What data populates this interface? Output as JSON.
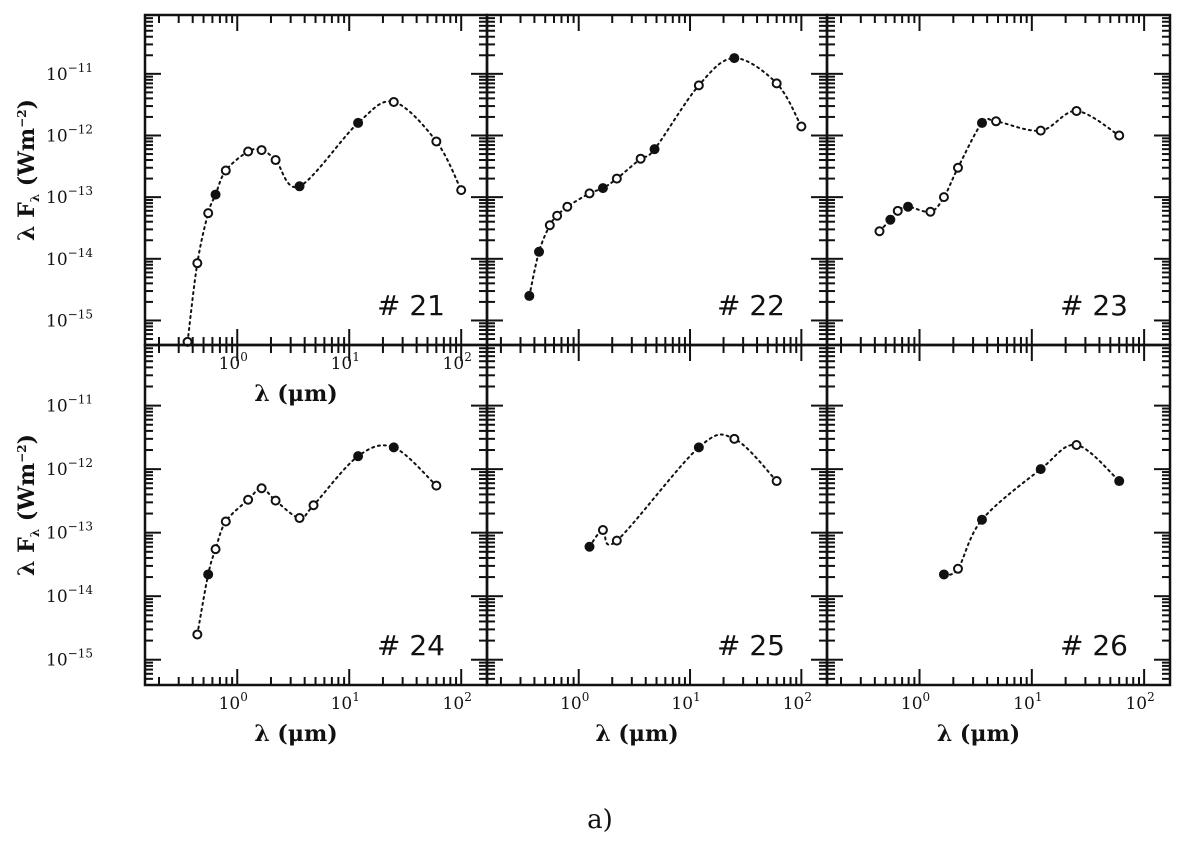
{
  "figure": {
    "caption": "a)",
    "x_axis_label": "λ (μm)",
    "y_axis_label": "λ F",
    "y_axis_label_sub": "λ",
    "y_axis_label_unit": "(Wm",
    "y_axis_label_unit_exp": "−2",
    "y_axis_label_close": ")"
  },
  "chart_data": [
    {
      "type": "scatter",
      "panel_label": "# 21",
      "x_scale": "log",
      "y_scale": "log",
      "xlim": [
        0.15,
        170
      ],
      "ylim": [
        4e-16,
        9e-11
      ],
      "x_ticks": [
        "10^0",
        "10^1",
        "10^2"
      ],
      "y_ticks": [
        "10^-15",
        "10^-14",
        "10^-13",
        "10^-12",
        "10^-11"
      ],
      "xlabel": "λ (μm)",
      "ylabel": "λ F_λ (Wm^-2)",
      "series": [
        {
          "points": [
            {
              "x": 0.36,
              "y": 4.5e-16,
              "filled": false
            },
            {
              "x": 0.44,
              "y": 8.5e-15,
              "filled": false
            },
            {
              "x": 0.55,
              "y": 5.5e-14,
              "filled": false
            },
            {
              "x": 0.64,
              "y": 1.1e-13,
              "filled": true
            },
            {
              "x": 0.79,
              "y": 2.7e-13,
              "filled": false
            },
            {
              "x": 1.25,
              "y": 5.5e-13,
              "filled": false
            },
            {
              "x": 1.65,
              "y": 5.8e-13,
              "filled": false
            },
            {
              "x": 2.2,
              "y": 4e-13,
              "filled": false
            },
            {
              "x": 3.6,
              "y": 1.5e-13,
              "filled": true
            },
            {
              "x": 12,
              "y": 1.6e-12,
              "filled": true
            },
            {
              "x": 25,
              "y": 3.5e-12,
              "filled": false
            },
            {
              "x": 60,
              "y": 8e-13,
              "filled": false
            },
            {
              "x": 100,
              "y": 1.3e-13,
              "filled": false
            }
          ]
        }
      ]
    },
    {
      "type": "scatter",
      "panel_label": "# 22",
      "x_scale": "log",
      "y_scale": "log",
      "xlim": [
        0.15,
        170
      ],
      "ylim": [
        4e-16,
        9e-11
      ],
      "x_ticks": [],
      "y_ticks": [],
      "series": [
        {
          "points": [
            {
              "x": 0.36,
              "y": 2.5e-15,
              "filled": true
            },
            {
              "x": 0.44,
              "y": 1.3e-14,
              "filled": true
            },
            {
              "x": 0.55,
              "y": 3.5e-14,
              "filled": false
            },
            {
              "x": 0.64,
              "y": 5e-14,
              "filled": false
            },
            {
              "x": 0.79,
              "y": 7e-14,
              "filled": false
            },
            {
              "x": 1.25,
              "y": 1.15e-13,
              "filled": false
            },
            {
              "x": 1.65,
              "y": 1.4e-13,
              "filled": true
            },
            {
              "x": 2.2,
              "y": 2e-13,
              "filled": false
            },
            {
              "x": 3.6,
              "y": 4.2e-13,
              "filled": false
            },
            {
              "x": 4.8,
              "y": 6e-13,
              "filled": true
            },
            {
              "x": 12,
              "y": 6.5e-12,
              "filled": false
            },
            {
              "x": 25,
              "y": 1.8e-11,
              "filled": true
            },
            {
              "x": 60,
              "y": 7e-12,
              "filled": false
            },
            {
              "x": 100,
              "y": 1.4e-12,
              "filled": false
            }
          ]
        }
      ]
    },
    {
      "type": "scatter",
      "panel_label": "# 23",
      "x_scale": "log",
      "y_scale": "log",
      "xlim": [
        0.15,
        170
      ],
      "ylim": [
        4e-16,
        9e-11
      ],
      "x_ticks": [],
      "y_ticks": [],
      "series": [
        {
          "points": [
            {
              "x": 0.44,
              "y": 2.8e-14,
              "filled": false
            },
            {
              "x": 0.55,
              "y": 4.3e-14,
              "filled": true
            },
            {
              "x": 0.64,
              "y": 6e-14,
              "filled": false
            },
            {
              "x": 0.79,
              "y": 7e-14,
              "filled": true
            },
            {
              "x": 1.25,
              "y": 5.8e-14,
              "filled": false
            },
            {
              "x": 1.65,
              "y": 1e-13,
              "filled": false
            },
            {
              "x": 2.2,
              "y": 3e-13,
              "filled": false
            },
            {
              "x": 3.6,
              "y": 1.6e-12,
              "filled": true
            },
            {
              "x": 4.8,
              "y": 1.7e-12,
              "filled": false
            },
            {
              "x": 12,
              "y": 1.2e-12,
              "filled": false
            },
            {
              "x": 25,
              "y": 2.5e-12,
              "filled": false
            },
            {
              "x": 60,
              "y": 1e-12,
              "filled": false
            }
          ]
        }
      ]
    },
    {
      "type": "scatter",
      "panel_label": "# 24",
      "x_scale": "log",
      "y_scale": "log",
      "xlim": [
        0.15,
        170
      ],
      "ylim": [
        4e-16,
        9e-11
      ],
      "x_ticks": [
        "10^0",
        "10^1",
        "10^2"
      ],
      "y_ticks": [
        "10^-15",
        "10^-14",
        "10^-13",
        "10^-12",
        "10^-11"
      ],
      "xlabel": "λ (μm)",
      "ylabel": "λ F_λ (Wm^-2)",
      "series": [
        {
          "points": [
            {
              "x": 0.44,
              "y": 2.5e-15,
              "filled": false
            },
            {
              "x": 0.55,
              "y": 2.2e-14,
              "filled": true
            },
            {
              "x": 0.64,
              "y": 5.5e-14,
              "filled": false
            },
            {
              "x": 0.79,
              "y": 1.5e-13,
              "filled": false
            },
            {
              "x": 1.25,
              "y": 3.3e-13,
              "filled": false
            },
            {
              "x": 1.65,
              "y": 5e-13,
              "filled": false
            },
            {
              "x": 2.2,
              "y": 3.2e-13,
              "filled": false
            },
            {
              "x": 3.6,
              "y": 1.7e-13,
              "filled": false
            },
            {
              "x": 4.8,
              "y": 2.7e-13,
              "filled": false
            },
            {
              "x": 12,
              "y": 1.6e-12,
              "filled": true
            },
            {
              "x": 25,
              "y": 2.2e-12,
              "filled": true
            },
            {
              "x": 60,
              "y": 5.5e-13,
              "filled": false
            }
          ]
        }
      ]
    },
    {
      "type": "scatter",
      "panel_label": "# 25",
      "x_scale": "log",
      "y_scale": "log",
      "xlim": [
        0.15,
        170
      ],
      "ylim": [
        4e-16,
        9e-11
      ],
      "x_ticks": [
        "10^0",
        "10^1",
        "10^2"
      ],
      "y_ticks": [],
      "xlabel": "λ (μm)",
      "series": [
        {
          "points": [
            {
              "x": 1.25,
              "y": 6e-14,
              "filled": true
            },
            {
              "x": 1.65,
              "y": 1.1e-13,
              "filled": false
            },
            {
              "x": 2.2,
              "y": 7.5e-14,
              "filled": false
            },
            {
              "x": 12,
              "y": 2.2e-12,
              "filled": true
            },
            {
              "x": 25,
              "y": 3e-12,
              "filled": false
            },
            {
              "x": 60,
              "y": 6.5e-13,
              "filled": false
            }
          ]
        }
      ]
    },
    {
      "type": "scatter",
      "panel_label": "# 26",
      "x_scale": "log",
      "y_scale": "log",
      "xlim": [
        0.15,
        170
      ],
      "ylim": [
        4e-16,
        9e-11
      ],
      "x_ticks": [
        "10^0",
        "10^1",
        "10^2"
      ],
      "y_ticks": [],
      "xlabel": "λ (μm)",
      "series": [
        {
          "points": [
            {
              "x": 1.65,
              "y": 2.2e-14,
              "filled": true
            },
            {
              "x": 2.2,
              "y": 2.7e-14,
              "filled": false
            },
            {
              "x": 3.6,
              "y": 1.6e-13,
              "filled": true
            },
            {
              "x": 12,
              "y": 1e-12,
              "filled": true
            },
            {
              "x": 25,
              "y": 2.4e-12,
              "filled": false
            },
            {
              "x": 60,
              "y": 6.5e-13,
              "filled": true
            }
          ]
        }
      ]
    }
  ]
}
